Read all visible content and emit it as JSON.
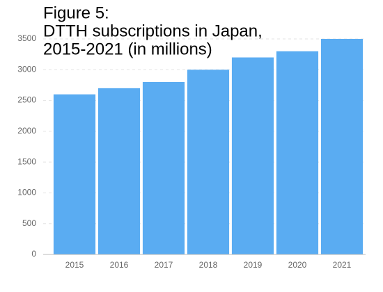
{
  "chart_data": {
    "type": "bar",
    "title": [
      "Figure 5:",
      "DTTH subscriptions in Japan,",
      "2015-2021 (in millions)"
    ],
    "categories": [
      "2015",
      "2016",
      "2017",
      "2018",
      "2019",
      "2020",
      "2021"
    ],
    "values": [
      2600,
      2700,
      2800,
      3000,
      3200,
      3300,
      3500
    ],
    "color": "#5aacf2",
    "ylim": [
      0,
      3500
    ],
    "yticks": [
      0,
      500,
      1000,
      1500,
      2000,
      2500,
      3000,
      3500
    ],
    "grid": true
  }
}
